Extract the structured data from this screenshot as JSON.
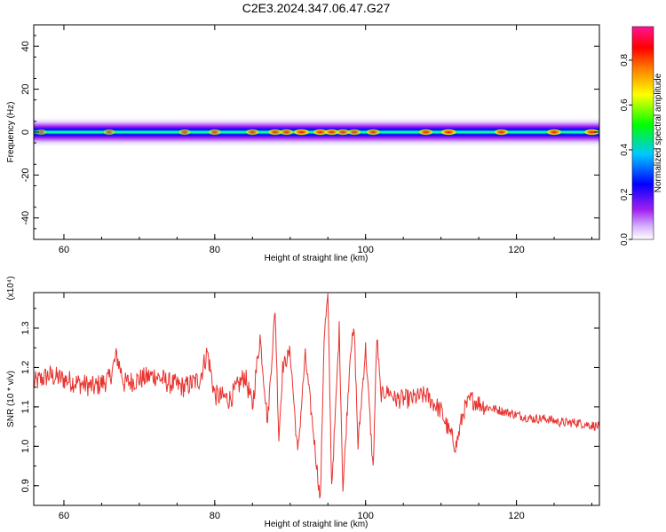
{
  "chart_data": [
    {
      "type": "heatmap",
      "title": "C2E3.2024.347.06.47.G27",
      "xlabel": "Height of straight line (km)",
      "ylabel": "Frequency (Hz)",
      "xlim": [
        56,
        131
      ],
      "ylim": [
        -50,
        50
      ],
      "xticks": [
        "60",
        "80",
        "100",
        "120"
      ],
      "yticks": [
        "40",
        "20",
        "0",
        "-20",
        "-40"
      ],
      "colorbar": {
        "label": "Normalized spectral amplitude",
        "range": [
          0.0,
          0.95
        ],
        "ticks": [
          "0.0",
          "0.2",
          "0.4",
          "0.6",
          "0.8"
        ],
        "colors": [
          "#ffffff",
          "#a020f0",
          "#0000ff",
          "#00c8ff",
          "#00ff00",
          "#ffff00",
          "#ff8000",
          "#ff0000",
          "#ff1493"
        ]
      },
      "band_halfwidth_hz": 3,
      "hotspots": [
        {
          "x": 57,
          "amp": 0.45
        },
        {
          "x": 66,
          "amp": 0.55
        },
        {
          "x": 76,
          "amp": 0.6
        },
        {
          "x": 80,
          "amp": 0.65
        },
        {
          "x": 85,
          "amp": 0.7
        },
        {
          "x": 88,
          "amp": 0.75
        },
        {
          "x": 89.5,
          "amp": 0.75
        },
        {
          "x": 91.5,
          "amp": 0.95
        },
        {
          "x": 94,
          "amp": 0.85
        },
        {
          "x": 95.5,
          "amp": 0.8
        },
        {
          "x": 97,
          "amp": 0.75
        },
        {
          "x": 98.5,
          "amp": 0.7
        },
        {
          "x": 101,
          "amp": 0.75
        },
        {
          "x": 108,
          "amp": 0.8
        },
        {
          "x": 111,
          "amp": 0.95
        },
        {
          "x": 118,
          "amp": 0.8
        },
        {
          "x": 125,
          "amp": 0.85
        },
        {
          "x": 130,
          "amp": 0.9
        }
      ]
    },
    {
      "type": "line",
      "xlabel": "Height of straight line (km)",
      "ylabel": "SNR (10 * v/v)",
      "y_multiplier": "(x10⁴)",
      "xlim": [
        56,
        131
      ],
      "ylim": [
        0.85,
        1.39
      ],
      "xticks": [
        "60",
        "80",
        "100",
        "120"
      ],
      "yticks": [
        "1.3",
        "1.2",
        "1.1",
        "1.0",
        "0.9"
      ],
      "line_color": "#e8332f",
      "series": [
        {
          "x": [
            56,
            58,
            60,
            62,
            64,
            66,
            67,
            68,
            70,
            72,
            74,
            76,
            78,
            79,
            80,
            82,
            84,
            85,
            86,
            87,
            88,
            88.5,
            89,
            90,
            91,
            92,
            93,
            94,
            94.5,
            95,
            95.5,
            96,
            96.5,
            97,
            98,
            98.5,
            99,
            99.5,
            100,
            101,
            101.5,
            102,
            103,
            104,
            106,
            108,
            110,
            111,
            112,
            113,
            114,
            116,
            118,
            120,
            122,
            124,
            126,
            128,
            131
          ],
          "y": [
            1.16,
            1.18,
            1.17,
            1.16,
            1.15,
            1.17,
            1.23,
            1.16,
            1.17,
            1.18,
            1.16,
            1.15,
            1.17,
            1.24,
            1.13,
            1.12,
            1.18,
            1.1,
            1.28,
            1.06,
            1.35,
            1.02,
            1.2,
            1.24,
            0.98,
            1.23,
            1.05,
            0.86,
            1.28,
            1.38,
            0.9,
            1.08,
            1.3,
            0.89,
            1.25,
            1.29,
            1.0,
            1.13,
            1.25,
            0.94,
            1.28,
            1.13,
            1.14,
            1.12,
            1.12,
            1.13,
            1.09,
            1.04,
            1.0,
            1.09,
            1.12,
            1.1,
            1.09,
            1.08,
            1.07,
            1.07,
            1.06,
            1.06,
            1.05
          ]
        }
      ]
    }
  ]
}
